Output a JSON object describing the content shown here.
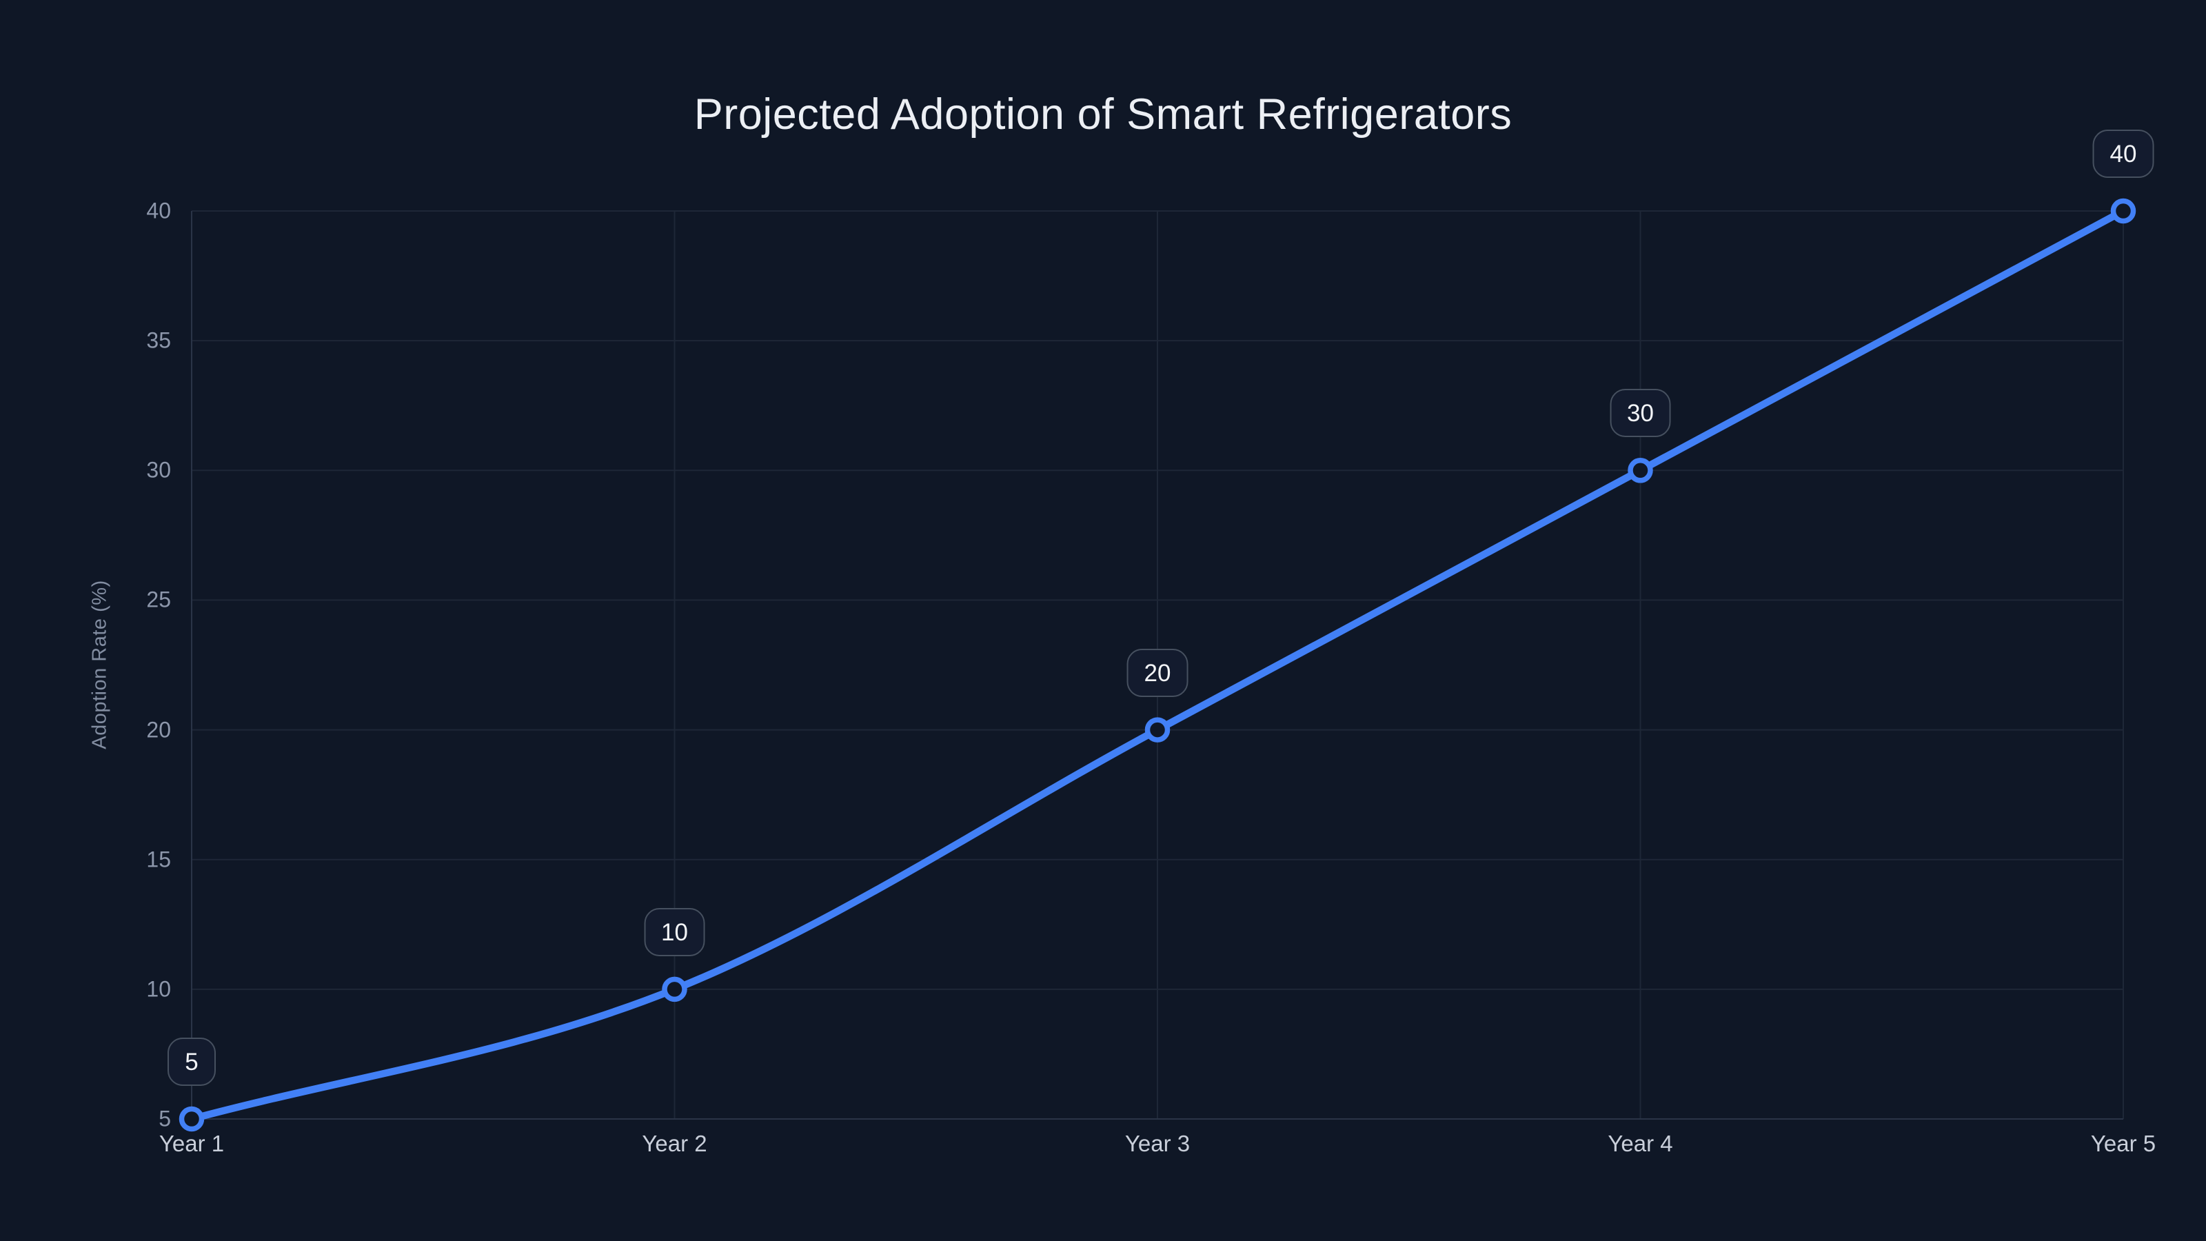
{
  "title": "Projected Adoption of Smart Refrigerators",
  "y_axis_title": "Adoption Rate (%)",
  "colors": {
    "background": "#0F1726",
    "line": "#4280F6",
    "point_fill": "#0F1726",
    "grid": "#1E2737",
    "axis": "#2A3447",
    "tick_text": "#8D97AB",
    "x_label_text": "#C9CFDA",
    "title_text": "#ECEFF4",
    "axis_title_text": "#828DA1",
    "badge_bg": "#131B2E",
    "badge_border": "#46505F",
    "badge_text": "#F3F5F8"
  },
  "chart_data": {
    "type": "line",
    "title": "Projected Adoption of Smart Refrigerators",
    "xlabel": "",
    "ylabel": "Adoption Rate (%)",
    "categories": [
      "Year 1",
      "Year 2",
      "Year 3",
      "Year 4",
      "Year 5"
    ],
    "series": [
      {
        "name": "Adoption Rate (%)",
        "values": [
          5,
          10,
          20,
          30,
          40
        ]
      }
    ],
    "point_labels": [
      "5",
      "10",
      "20",
      "30",
      "40"
    ],
    "yticks": [
      5,
      10,
      15,
      20,
      25,
      30,
      35,
      40
    ],
    "ylim": [
      5,
      40
    ],
    "grid": true,
    "curve": "monotone",
    "legend_position": "none"
  }
}
